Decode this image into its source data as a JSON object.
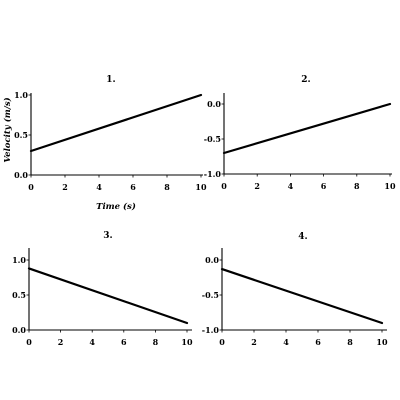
{
  "chart_data": [
    {
      "type": "line",
      "title": "1.",
      "xlabel": "Time (s)",
      "ylabel": "Velocity (m/s)",
      "xlim": [
        0,
        10
      ],
      "ylim": [
        0,
        1.0
      ],
      "xticks": [
        "0",
        "2",
        "4",
        "6",
        "8",
        "10"
      ],
      "yticks": [
        "0.0",
        "0.5",
        "1.0"
      ],
      "grid": false,
      "x": [
        0,
        10
      ],
      "series": [
        {
          "values": [
            0.3,
            1.0
          ]
        }
      ]
    },
    {
      "type": "line",
      "title": "2.",
      "xlabel": "",
      "ylabel": "",
      "xlim": [
        0,
        10
      ],
      "ylim": [
        -1.0,
        0.0
      ],
      "xticks": [
        "0",
        "2",
        "4",
        "6",
        "8",
        "10"
      ],
      "yticks": [
        "-1.0",
        "-0.5",
        "0.0"
      ],
      "grid": false,
      "x": [
        0,
        10
      ],
      "series": [
        {
          "values": [
            -0.7,
            0.0
          ]
        }
      ]
    },
    {
      "type": "line",
      "title": "3.",
      "xlabel": "",
      "ylabel": "",
      "xlim": [
        0,
        10
      ],
      "ylim": [
        0,
        1.0
      ],
      "xticks": [
        "0",
        "2",
        "4",
        "6",
        "8",
        "10"
      ],
      "yticks": [
        "0.0",
        "0.5",
        "1.0"
      ],
      "grid": false,
      "x": [
        0,
        10
      ],
      "series": [
        {
          "values": [
            0.88,
            0.1
          ]
        }
      ]
    },
    {
      "type": "line",
      "title": "4.",
      "xlabel": "",
      "ylabel": "",
      "xlim": [
        0,
        10
      ],
      "ylim": [
        -1.0,
        0.0
      ],
      "xticks": [
        "0",
        "2",
        "4",
        "6",
        "8",
        "10"
      ],
      "yticks": [
        "-1.0",
        "-0.5",
        "0.0"
      ],
      "grid": false,
      "x": [
        0,
        10
      ],
      "series": [
        {
          "values": [
            -0.13,
            -0.9
          ]
        }
      ]
    }
  ]
}
